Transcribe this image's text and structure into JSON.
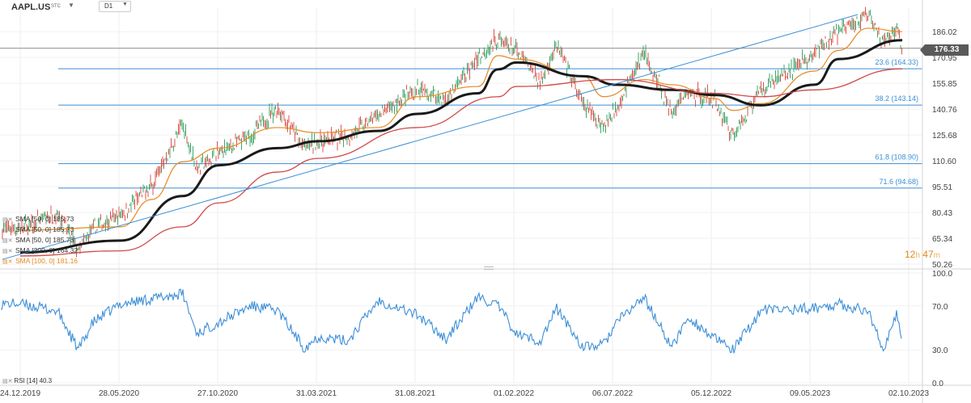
{
  "header": {
    "symbol": "AAPL.US",
    "symbol_suffix": "STC",
    "timeframe": "D1"
  },
  "legend": {
    "items": [
      {
        "label": "SMA [50, 0] 185.73",
        "color": "#333333"
      },
      {
        "label": "SMA [50, 0] 185.73",
        "color": "#333333"
      },
      {
        "label": "SMA [50, 0] 185.73",
        "color": "#333333"
      },
      {
        "label": "SMA [200, 0] 164.32",
        "color": "#333333"
      },
      {
        "label": "SMA [100, 0] 181.16",
        "color": "#e8881e"
      }
    ],
    "rsi_label": "RSI [14] 40.3"
  },
  "current_price": "176.33",
  "timer": {
    "hours": "12",
    "h": "h",
    "minutes": "47",
    "m": "m"
  },
  "chart_data": [
    {
      "type": "line",
      "title": "AAPL.US D1",
      "x_ticks": [
        "24.12.2019",
        "28.05.2020",
        "27.10.2020",
        "31.03.2021",
        "31.08.2021",
        "01.02.2022",
        "06.07.2022",
        "05.12.2022",
        "09.05.2023",
        "02.10.2023"
      ],
      "y_ticks": [
        "186.02",
        "170.95",
        "155.85",
        "140.76",
        "125.68",
        "110.60",
        "95.51",
        "80.43",
        "65.34",
        "50.26"
      ],
      "ylim": [
        50.26,
        196
      ],
      "current_price": 176.33,
      "fibonacci_levels": [
        {
          "label": "23.6 (164.33)",
          "value": 164.33
        },
        {
          "label": "38.2 (143.14)",
          "value": 143.14
        },
        {
          "label": "61.8 (108.90)",
          "value": 108.9
        },
        {
          "label": "71.6 (94.68)",
          "value": 94.68
        }
      ],
      "trend_channel": {
        "from": [
          "24.12.2019",
          53
        ],
        "to": [
          "15.07.2023",
          196
        ]
      },
      "price_path": [
        [
          "24.12.2019",
          71
        ],
        [
          "20.02.2020",
          80
        ],
        [
          "23.03.2020",
          58
        ],
        [
          "15.04.2020",
          71
        ],
        [
          "28.05.2020",
          79
        ],
        [
          "15.07.2020",
          96
        ],
        [
          "01.09.2020",
          132
        ],
        [
          "23.09.2020",
          106
        ],
        [
          "27.10.2020",
          115
        ],
        [
          "15.12.2020",
          125
        ],
        [
          "26.01.2021",
          142
        ],
        [
          "08.03.2021",
          118
        ],
        [
          "31.03.2021",
          122
        ],
        [
          "15.05.2021",
          125
        ],
        [
          "01.07.2021",
          137
        ],
        [
          "31.08.2021",
          152
        ],
        [
          "15.10.2021",
          146
        ],
        [
          "03.12.2021",
          171
        ],
        [
          "03.01.2022",
          182
        ],
        [
          "01.02.2022",
          174
        ],
        [
          "10.03.2022",
          157
        ],
        [
          "04.04.2022",
          178
        ],
        [
          "15.05.2022",
          143
        ],
        [
          "16.06.2022",
          131
        ],
        [
          "06.07.2022",
          142
        ],
        [
          "17.08.2022",
          174
        ],
        [
          "30.09.2022",
          138
        ],
        [
          "25.10.2022",
          151
        ],
        [
          "05.12.2022",
          146
        ],
        [
          "03.01.2023",
          125
        ],
        [
          "15.02.2023",
          153
        ],
        [
          "09.05.2023",
          173
        ],
        [
          "15.06.2023",
          186
        ],
        [
          "31.07.2023",
          196
        ],
        [
          "25.08.2023",
          178
        ],
        [
          "14.09.2023",
          188
        ],
        [
          "22.09.2023",
          176.3
        ]
      ],
      "series": [
        {
          "name": "SMA [50, 0]",
          "color": "#e8881e",
          "values": [
            [
              "24.12.2019",
              70
            ],
            [
              "28.05.2020",
              72
            ],
            [
              "15.07.2020",
              88
            ],
            [
              "01.09.2020",
              110
            ],
            [
              "27.10.2020",
              118
            ],
            [
              "26.01.2021",
              130
            ],
            [
              "31.03.2021",
              127
            ],
            [
              "01.07.2021",
              130
            ],
            [
              "31.08.2021",
              148
            ],
            [
              "03.12.2021",
              154
            ],
            [
              "03.01.2022",
              172
            ],
            [
              "01.02.2022",
              170
            ],
            [
              "15.05.2022",
              160
            ],
            [
              "16.06.2022",
              148
            ],
            [
              "17.08.2022",
              158
            ],
            [
              "30.09.2022",
              155
            ],
            [
              "05.12.2022",
              147
            ],
            [
              "03.01.2023",
              140
            ],
            [
              "15.02.2023",
              144
            ],
            [
              "09.05.2023",
              163
            ],
            [
              "15.06.2023",
              175
            ],
            [
              "31.07.2023",
              188
            ],
            [
              "22.09.2023",
              186
            ]
          ]
        },
        {
          "name": "SMA [100, 0]",
          "color": "#1a1a1a",
          "values": [
            [
              "24.12.2019",
              57
            ],
            [
              "28.05.2020",
              64
            ],
            [
              "01.09.2020",
              90
            ],
            [
              "27.10.2020",
              108
            ],
            [
              "26.01.2021",
              118
            ],
            [
              "31.03.2021",
              122
            ],
            [
              "01.07.2021",
              128
            ],
            [
              "31.08.2021",
              138
            ],
            [
              "03.12.2021",
              150
            ],
            [
              "03.01.2022",
              164
            ],
            [
              "01.02.2022",
              168
            ],
            [
              "15.05.2022",
              160
            ],
            [
              "06.07.2022",
              155
            ],
            [
              "30.09.2022",
              152
            ],
            [
              "05.12.2022",
              149
            ],
            [
              "15.02.2023",
              143
            ],
            [
              "09.05.2023",
              155
            ],
            [
              "15.06.2023",
              170
            ],
            [
              "22.09.2023",
              181
            ]
          ]
        },
        {
          "name": "SMA [200, 0]",
          "color": "#d04a4a",
          "values": [
            [
              "24.12.2019",
              55
            ],
            [
              "28.05.2020",
              58
            ],
            [
              "01.09.2020",
              72
            ],
            [
              "27.10.2020",
              86
            ],
            [
              "26.01.2021",
              104
            ],
            [
              "31.03.2021",
              112
            ],
            [
              "31.08.2021",
              130
            ],
            [
              "03.01.2022",
              148
            ],
            [
              "01.02.2022",
              154
            ],
            [
              "06.07.2022",
              158
            ],
            [
              "05.12.2022",
              150
            ],
            [
              "15.02.2023",
              148
            ],
            [
              "09.05.2023",
              152
            ],
            [
              "22.09.2023",
              164.3
            ]
          ]
        }
      ]
    },
    {
      "type": "line",
      "title": "RSI [14]",
      "y_ticks": [
        "100.0",
        "70.0",
        "30.0",
        "0.0"
      ],
      "ylim": [
        0,
        100
      ],
      "series": [
        {
          "name": "RSI [14]",
          "color": "#3d8fd8",
          "values": [
            [
              "24.12.2019",
              72
            ],
            [
              "20.02.2020",
              65
            ],
            [
              "23.03.2020",
              30
            ],
            [
              "15.04.2020",
              55
            ],
            [
              "28.05.2020",
              72
            ],
            [
              "01.09.2020",
              81
            ],
            [
              "23.09.2020",
              45
            ],
            [
              "27.10.2020",
              55
            ],
            [
              "15.12.2020",
              70
            ],
            [
              "26.01.2021",
              66
            ],
            [
              "08.03.2021",
              32
            ],
            [
              "31.03.2021",
              42
            ],
            [
              "15.05.2021",
              38
            ],
            [
              "01.07.2021",
              75
            ],
            [
              "31.08.2021",
              62
            ],
            [
              "15.10.2021",
              40
            ],
            [
              "03.12.2021",
              78
            ],
            [
              "03.01.2022",
              70
            ],
            [
              "01.02.2022",
              44
            ],
            [
              "10.03.2022",
              38
            ],
            [
              "04.04.2022",
              68
            ],
            [
              "15.05.2022",
              32
            ],
            [
              "16.06.2022",
              35
            ],
            [
              "06.07.2022",
              55
            ],
            [
              "17.08.2022",
              78
            ],
            [
              "30.09.2022",
              32
            ],
            [
              "25.10.2022",
              60
            ],
            [
              "05.12.2022",
              40
            ],
            [
              "03.01.2023",
              30
            ],
            [
              "15.02.2023",
              66
            ],
            [
              "09.05.2023",
              68
            ],
            [
              "15.06.2023",
              72
            ],
            [
              "31.07.2023",
              65
            ],
            [
              "25.08.2023",
              30
            ],
            [
              "14.09.2023",
              63
            ],
            [
              "22.09.2023",
              40.3
            ]
          ]
        }
      ]
    }
  ]
}
